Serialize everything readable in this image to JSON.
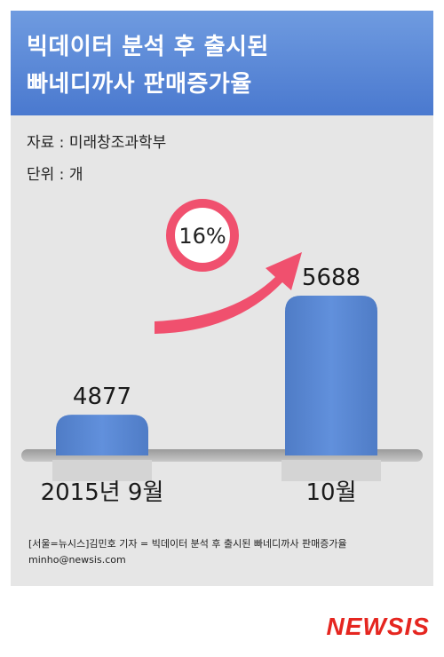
{
  "header": {
    "title_line1": "빅데이터 분석 후 출시된",
    "title_line2": "빠네디까사 판매증가율"
  },
  "meta": {
    "source": "자료 : 미래창조과학부",
    "unit": "단위 : 개"
  },
  "colors": {
    "header": "#5b8ad8",
    "bar": "#5b87cf",
    "arrow": "#f0506e",
    "logo": "#e52620"
  },
  "chart_data": {
    "type": "bar",
    "categories": [
      "2015년 9월",
      "10월"
    ],
    "values": [
      4877,
      5688
    ],
    "value_labels": [
      "4877",
      "5688"
    ],
    "annotation": "16%",
    "title": "",
    "xlabel": "",
    "ylabel": ""
  },
  "credit": {
    "line1": "[서울=뉴시스]김민호 기자 = 빅데이터 분석 후 출시된 빠네디까사 판매증가율",
    "line2": "minho@newsis.com"
  },
  "logo": {
    "text": "NEWSIS"
  }
}
